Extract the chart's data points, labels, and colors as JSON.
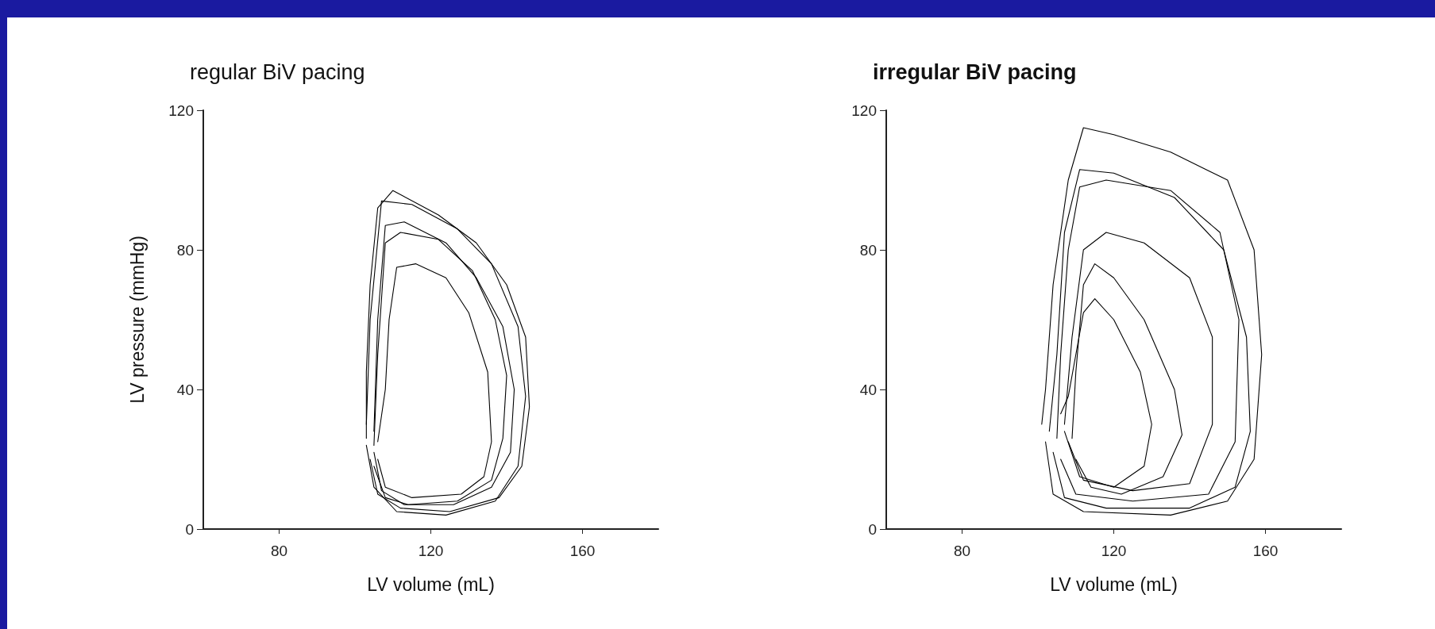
{
  "chart_data": [
    {
      "type": "line",
      "title": "regular BiV pacing",
      "xlabel": "LV volume (mL)",
      "ylabel": "LV pressure (mmHg)",
      "xlim": [
        60,
        180
      ],
      "xticks": [
        80,
        120,
        160
      ],
      "ylim": [
        0,
        120
      ],
      "yticks": [
        0,
        40,
        80,
        120
      ],
      "grid": false,
      "marker": "none",
      "line_style": "solid",
      "series": [
        {
          "color": "#000000",
          "x": [
            104,
            106,
            112,
            125,
            138,
            144,
            146,
            145,
            140,
            132,
            122,
            110,
            106,
            104,
            103,
            103
          ],
          "values": [
            20,
            10,
            6,
            5,
            9,
            18,
            35,
            55,
            70,
            82,
            90,
            97,
            92,
            70,
            45,
            26
          ]
        },
        {
          "color": "#000000",
          "x": [
            106,
            108,
            115,
            128,
            134,
            136,
            135,
            130,
            124,
            116,
            111,
            109,
            108,
            106
          ],
          "values": [
            20,
            12,
            9,
            10,
            15,
            25,
            45,
            62,
            72,
            76,
            75,
            60,
            40,
            25
          ]
        },
        {
          "color": "#000000",
          "x": [
            105,
            107,
            113,
            126,
            136,
            141,
            142,
            139,
            132,
            124,
            113,
            108,
            106,
            105
          ],
          "values": [
            22,
            11,
            7,
            7,
            12,
            22,
            40,
            58,
            72,
            82,
            88,
            87,
            60,
            28
          ]
        },
        {
          "color": "#000000",
          "x": [
            103,
            105,
            111,
            124,
            137,
            143,
            145,
            143,
            136,
            127,
            115,
            107,
            104,
            103
          ],
          "values": [
            24,
            12,
            5,
            4,
            8,
            18,
            38,
            58,
            76,
            86,
            93,
            94,
            60,
            30
          ]
        },
        {
          "color": "#000000",
          "x": [
            105,
            108,
            114,
            127,
            136,
            139,
            140,
            137,
            131,
            122,
            112,
            108,
            106,
            105
          ],
          "values": [
            18,
            9,
            7,
            8,
            14,
            26,
            44,
            60,
            74,
            83,
            85,
            82,
            50,
            24
          ]
        }
      ]
    },
    {
      "type": "line",
      "title": "irregular BiV pacing",
      "xlabel": "LV volume (mL)",
      "xlim": [
        60,
        180
      ],
      "xticks": [
        80,
        120,
        160
      ],
      "ylim": [
        0,
        120
      ],
      "yticks": [
        0,
        40,
        80,
        120
      ],
      "grid": false,
      "marker": "none",
      "line_style": "solid",
      "series": [
        {
          "color": "#000000",
          "x": [
            102,
            104,
            112,
            135,
            150,
            157,
            159,
            157,
            150,
            135,
            120,
            112,
            108,
            104,
            102,
            101
          ],
          "values": [
            25,
            10,
            5,
            4,
            8,
            20,
            50,
            80,
            100,
            108,
            113,
            115,
            100,
            70,
            40,
            30
          ]
        },
        {
          "color": "#000000",
          "x": [
            106,
            110,
            125,
            145,
            152,
            153,
            148,
            135,
            118,
            111,
            108,
            106,
            105
          ],
          "values": [
            20,
            10,
            8,
            10,
            25,
            60,
            85,
            97,
            100,
            98,
            80,
            50,
            26
          ]
        },
        {
          "color": "#000000",
          "x": [
            110,
            114,
            122,
            133,
            138,
            136,
            128,
            120,
            115,
            112,
            110,
            109
          ],
          "values": [
            20,
            12,
            10,
            15,
            27,
            40,
            60,
            72,
            76,
            70,
            45,
            26
          ]
        },
        {
          "color": "#000000",
          "x": [
            108,
            112,
            125,
            140,
            146,
            146,
            140,
            128,
            118,
            112,
            109,
            107
          ],
          "values": [
            25,
            14,
            11,
            13,
            30,
            55,
            72,
            82,
            85,
            80,
            55,
            30
          ]
        },
        {
          "color": "#000000",
          "x": [
            104,
            107,
            118,
            140,
            152,
            156,
            155,
            149,
            136,
            120,
            111,
            107,
            105,
            103
          ],
          "values": [
            22,
            9,
            6,
            6,
            12,
            28,
            55,
            80,
            95,
            102,
            103,
            85,
            50,
            28
          ]
        },
        {
          "color": "#000000",
          "x": [
            107,
            111,
            120,
            128,
            130,
            127,
            120,
            115,
            112,
            110,
            108,
            106
          ],
          "values": [
            28,
            15,
            12,
            18,
            30,
            45,
            60,
            66,
            62,
            50,
            38,
            33
          ]
        }
      ]
    }
  ]
}
